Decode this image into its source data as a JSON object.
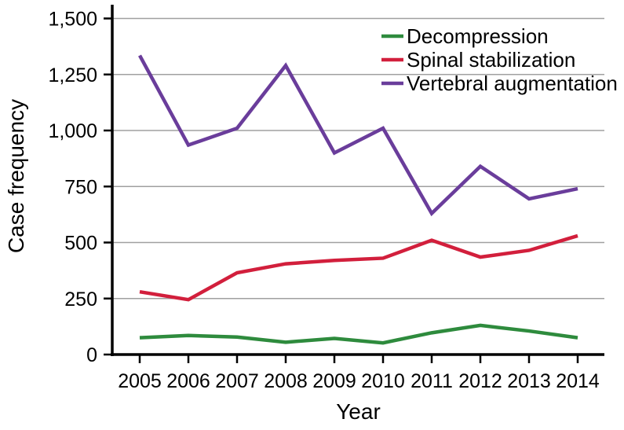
{
  "chart_data": {
    "type": "line",
    "title": "",
    "xlabel": "Year",
    "ylabel": "Case frequency",
    "x": [
      2005,
      2006,
      2007,
      2008,
      2009,
      2010,
      2011,
      2012,
      2013,
      2014
    ],
    "series": [
      {
        "name": "Decompression",
        "color": "#2e8b3d",
        "values": [
          75,
          85,
          78,
          55,
          72,
          52,
          97,
          130,
          105,
          75
        ]
      },
      {
        "name": "Spinal stabilization",
        "color": "#d21f3c",
        "values": [
          280,
          245,
          365,
          405,
          420,
          430,
          510,
          435,
          465,
          530
        ]
      },
      {
        "name": "Vertebral augmentation",
        "color": "#6a3d9b",
        "values": [
          1335,
          935,
          1010,
          1290,
          900,
          1010,
          630,
          840,
          695,
          740
        ]
      }
    ],
    "ylim": [
      0,
      1500
    ],
    "yticks": [
      0,
      250,
      500,
      750,
      1000,
      1250,
      1500
    ],
    "ytick_labels": [
      "0",
      "250",
      "500",
      "750",
      "1,000",
      "1,250",
      "1,500"
    ],
    "grid": "horizontal",
    "legend_position": "top-right",
    "axis_color": "#000000",
    "grid_color": "#a0a0a0",
    "background": "#ffffff",
    "line_width": 4.5
  }
}
